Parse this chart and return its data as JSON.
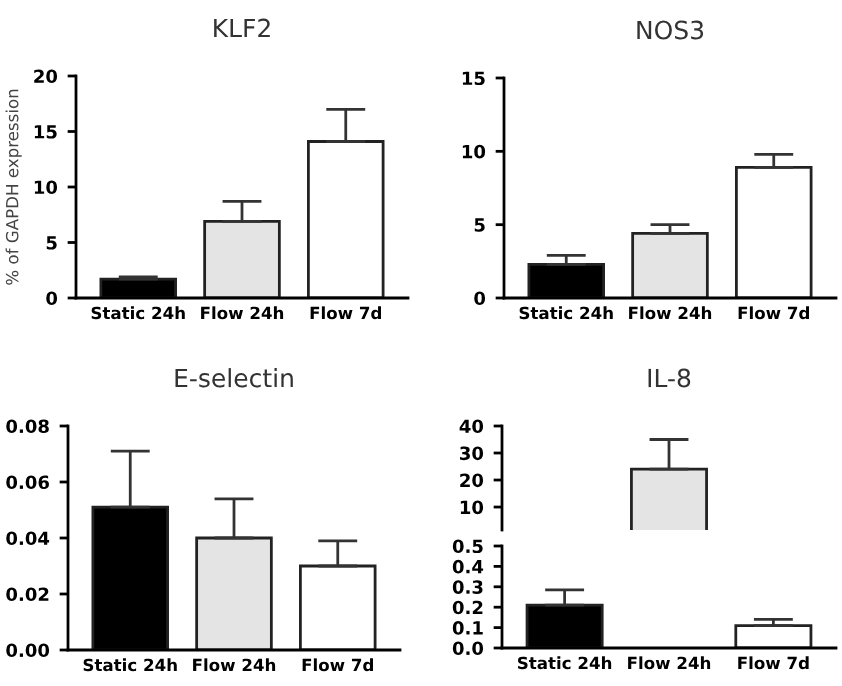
{
  "chart_data": [
    {
      "type": "bar",
      "title": "KLF2",
      "ylabel": "% of GAPDH expression",
      "categories": [
        "Static 24h",
        "Flow 24h",
        "Flow 7d"
      ],
      "values": [
        1.7,
        6.9,
        14.1
      ],
      "colors": [
        "#000000",
        "#e4e4e4",
        "#ffffff"
      ],
      "errors": [
        [
          1.7,
          1.9
        ],
        [
          6.9,
          8.7
        ],
        [
          14.1,
          17
        ]
      ],
      "ylim": [
        0,
        20
      ],
      "yticks": [
        0,
        5,
        10,
        15,
        20
      ],
      "grid": false
    },
    {
      "type": "bar",
      "title": "NOS3",
      "categories": [
        "Static 24h",
        "Flow 24h",
        "Flow 7d"
      ],
      "values": [
        2.3,
        4.4,
        8.9
      ],
      "colors": [
        "#000000",
        "#e4e4e4",
        "#ffffff"
      ],
      "errors": [
        [
          2.3,
          2.9
        ],
        [
          4.4,
          5.0
        ],
        [
          8.9,
          9.8
        ]
      ],
      "ylim": [
        0,
        15
      ],
      "yticks": [
        0,
        5,
        10,
        15
      ],
      "grid": false
    },
    {
      "type": "bar",
      "title": "E-selectin",
      "categories": [
        "Static 24h",
        "Flow 24h",
        "Flow 7d"
      ],
      "values": [
        0.051,
        0.04,
        0.03
      ],
      "colors": [
        "#000000",
        "#e4e4e4",
        "#ffffff"
      ],
      "errors": [
        [
          0.051,
          0.071
        ],
        [
          0.04,
          0.054
        ],
        [
          0.03,
          0.039
        ]
      ],
      "ylim": [
        0,
        0.08
      ],
      "yticks": [
        {
          "value": 0,
          "label": "0.00"
        },
        {
          "value": 0.02,
          "label": "0.02"
        },
        {
          "value": 0.04,
          "label": "0.04"
        },
        {
          "value": 0.06,
          "label": "0.06"
        },
        {
          "value": 0.08,
          "label": "0.08"
        }
      ],
      "grid": false
    },
    {
      "type": "bar",
      "title": "IL-8",
      "categories": [
        null,
        null,
        null
      ],
      "values": [
        null,
        24,
        null
      ],
      "colors": [
        "#000000",
        "#e4e4e4",
        "#ffffff"
      ],
      "errors": [
        null,
        [
          24,
          35
        ],
        null
      ],
      "ylim": [
        1.5,
        40
      ],
      "yticks": [
        10,
        20,
        30,
        40
      ],
      "tick_labels": "y",
      "grid": false
    },
    {
      "type": "bar",
      "categories": [
        "Static 24h",
        "Flow 24h",
        "Flow 7d"
      ],
      "values": [
        0.21,
        null,
        0.11
      ],
      "colors": [
        "#000000",
        "#e4e4e4",
        "#ffffff"
      ],
      "errors": [
        [
          0.21,
          0.285
        ],
        null,
        [
          0.11,
          0.14
        ]
      ],
      "ylim": [
        0,
        0.5
      ],
      "yticks": [
        {
          "value": 0,
          "label": "0.0"
        },
        0.1,
        0.2,
        0.3,
        0.4,
        0.5
      ],
      "grid": false
    }
  ]
}
